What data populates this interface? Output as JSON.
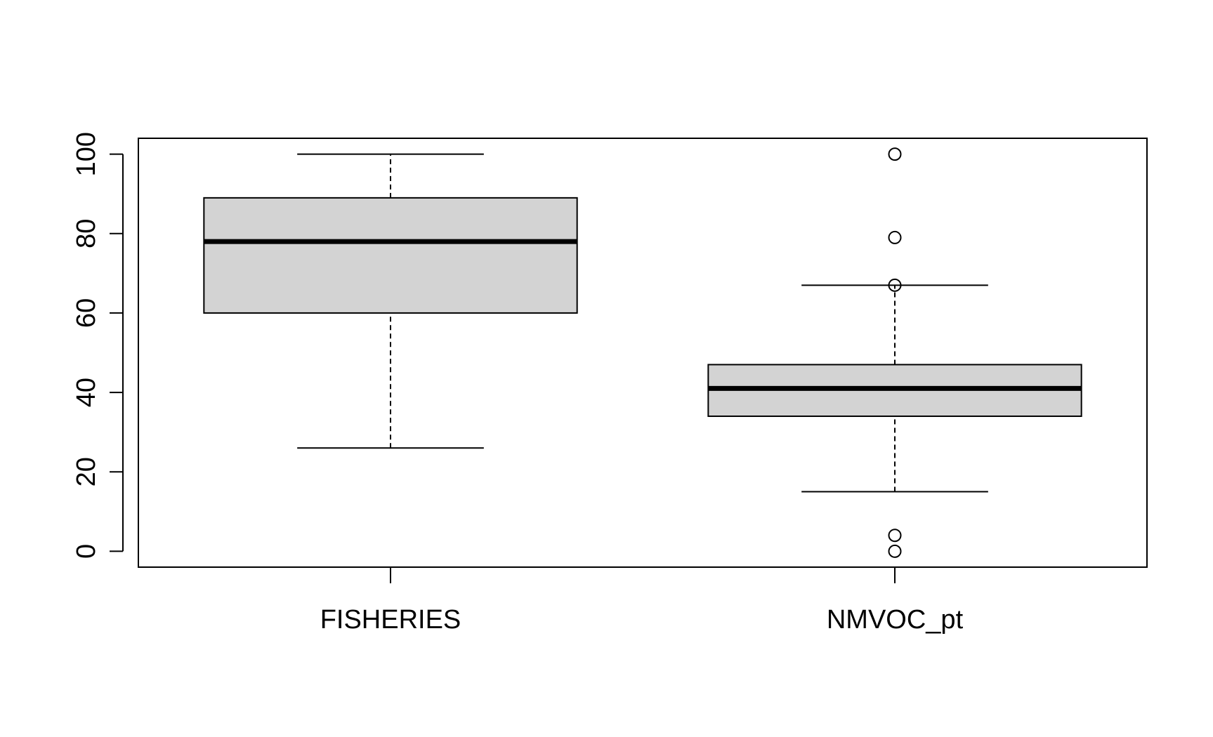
{
  "chart_data": {
    "type": "boxplot",
    "title": "",
    "xlabel": "",
    "ylabel": "",
    "ylim": [
      -4,
      104
    ],
    "yticks": [
      0,
      20,
      40,
      60,
      80,
      100
    ],
    "grid": false,
    "legend": "none",
    "colors": {
      "box_fill": "#d3d3d3",
      "stroke": "#000000"
    },
    "categories": [
      "FISHERIES",
      "NMVOC_pt"
    ],
    "series": [
      {
        "category": "FISHERIES",
        "whisker_low": 26,
        "q1": 60,
        "median": 78,
        "q3": 89,
        "whisker_high": 100,
        "outliers": []
      },
      {
        "category": "NMVOC_pt",
        "whisker_low": 15,
        "q1": 34,
        "median": 41,
        "q3": 47,
        "whisker_high": 67,
        "outliers": [
          100,
          79,
          67,
          4,
          0
        ]
      }
    ]
  }
}
